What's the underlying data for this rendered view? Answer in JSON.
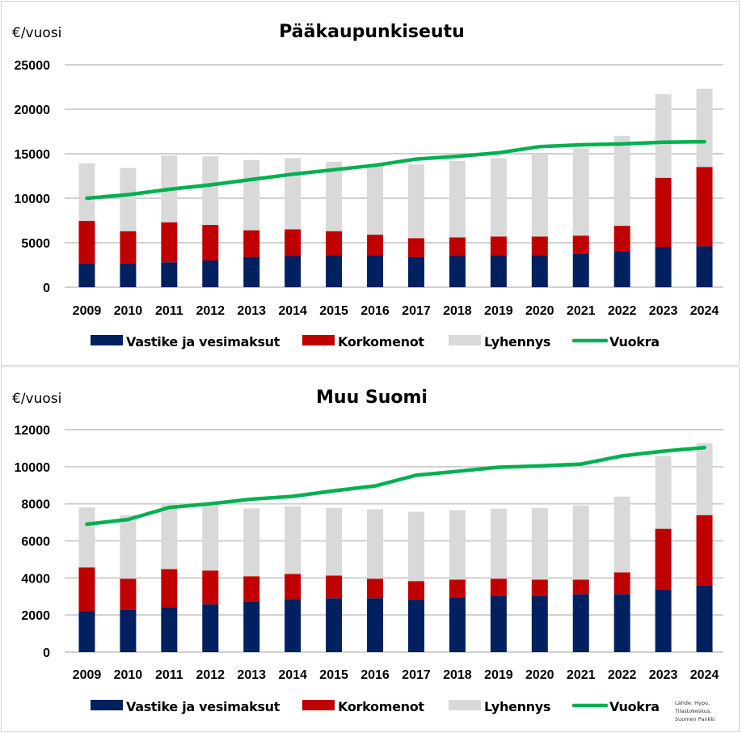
{
  "source_note": [
    "Lähde: Hypo,",
    "Tilastokeskus,",
    "Suomen Pankki"
  ],
  "colors": {
    "vastike": "#002060",
    "korko": "#c00000",
    "lyhennys": "#d9d9d9",
    "vuokra": "#00b050"
  },
  "chart_data": [
    {
      "type": "bar",
      "stacked": true,
      "title": "Pääkaupunkiseutu",
      "ylabel": "€/vuosi",
      "xlabel": "",
      "ylim": [
        0,
        25000
      ],
      "yticks": [
        0,
        5000,
        10000,
        15000,
        20000,
        25000
      ],
      "grid": true,
      "legend_position": "bottom",
      "categories": [
        "2009",
        "2010",
        "2011",
        "2012",
        "2013",
        "2014",
        "2015",
        "2016",
        "2017",
        "2018",
        "2019",
        "2020",
        "2021",
        "2022",
        "2023",
        "2024"
      ],
      "series": [
        {
          "name": "Vastike ja vesimaksut",
          "kind": "bar",
          "color_key": "vastike",
          "values": [
            2700,
            2700,
            2800,
            3000,
            3400,
            3500,
            3600,
            3600,
            3400,
            3500,
            3600,
            3600,
            3800,
            4000,
            4500,
            4600
          ]
        },
        {
          "name": "Korkomenot",
          "kind": "bar",
          "color_key": "korko",
          "values": [
            4750,
            3600,
            4500,
            4000,
            3000,
            3000,
            2700,
            2300,
            2100,
            2100,
            2100,
            2100,
            2000,
            2900,
            7800,
            8900
          ]
        },
        {
          "name": "Lyhennys",
          "kind": "bar",
          "color_key": "lyhennys",
          "values": [
            6450,
            7100,
            7500,
            7700,
            7900,
            8000,
            7800,
            7900,
            8300,
            8600,
            8800,
            9300,
            9800,
            10100,
            9400,
            8800
          ]
        },
        {
          "name": "Vuokra",
          "kind": "line",
          "color_key": "vuokra",
          "values": [
            10000,
            10400,
            11000,
            11500,
            12100,
            12700,
            13200,
            13700,
            14400,
            14700,
            15100,
            15800,
            16000,
            16100,
            16300,
            16350
          ]
        }
      ]
    },
    {
      "type": "bar",
      "stacked": true,
      "title": "Muu Suomi",
      "ylabel": "€/vuosi",
      "xlabel": "",
      "ylim": [
        0,
        12000
      ],
      "yticks": [
        0,
        2000,
        4000,
        6000,
        8000,
        10000,
        12000
      ],
      "grid": true,
      "legend_position": "bottom",
      "categories": [
        "2009",
        "2010",
        "2011",
        "2012",
        "2013",
        "2014",
        "2015",
        "2016",
        "2017",
        "2018",
        "2019",
        "2020",
        "2021",
        "2022",
        "2023",
        "2024"
      ],
      "series": [
        {
          "name": "Vastike ja vesimaksut",
          "kind": "bar",
          "color_key": "vastike",
          "values": [
            2220,
            2300,
            2430,
            2570,
            2740,
            2870,
            2910,
            2910,
            2830,
            2960,
            3040,
            3040,
            3130,
            3130,
            3390,
            3610
          ]
        },
        {
          "name": "Korkomenot",
          "kind": "bar",
          "color_key": "korko",
          "values": [
            2350,
            1660,
            2050,
            1830,
            1350,
            1350,
            1220,
            1050,
            1000,
            950,
            920,
            870,
            780,
            1170,
            3260,
            3780
          ]
        },
        {
          "name": "Lyhennys",
          "kind": "bar",
          "color_key": "lyhennys",
          "values": [
            3230,
            3440,
            3470,
            3500,
            3660,
            3650,
            3650,
            3740,
            3740,
            3740,
            3780,
            3860,
            4000,
            4090,
            3920,
            3870
          ]
        },
        {
          "name": "Vuokra",
          "kind": "line",
          "color_key": "vuokra",
          "values": [
            6900,
            7150,
            7800,
            8000,
            8250,
            8400,
            8700,
            8960,
            9540,
            9750,
            9970,
            10040,
            10140,
            10580,
            10840,
            11030
          ]
        }
      ]
    }
  ]
}
